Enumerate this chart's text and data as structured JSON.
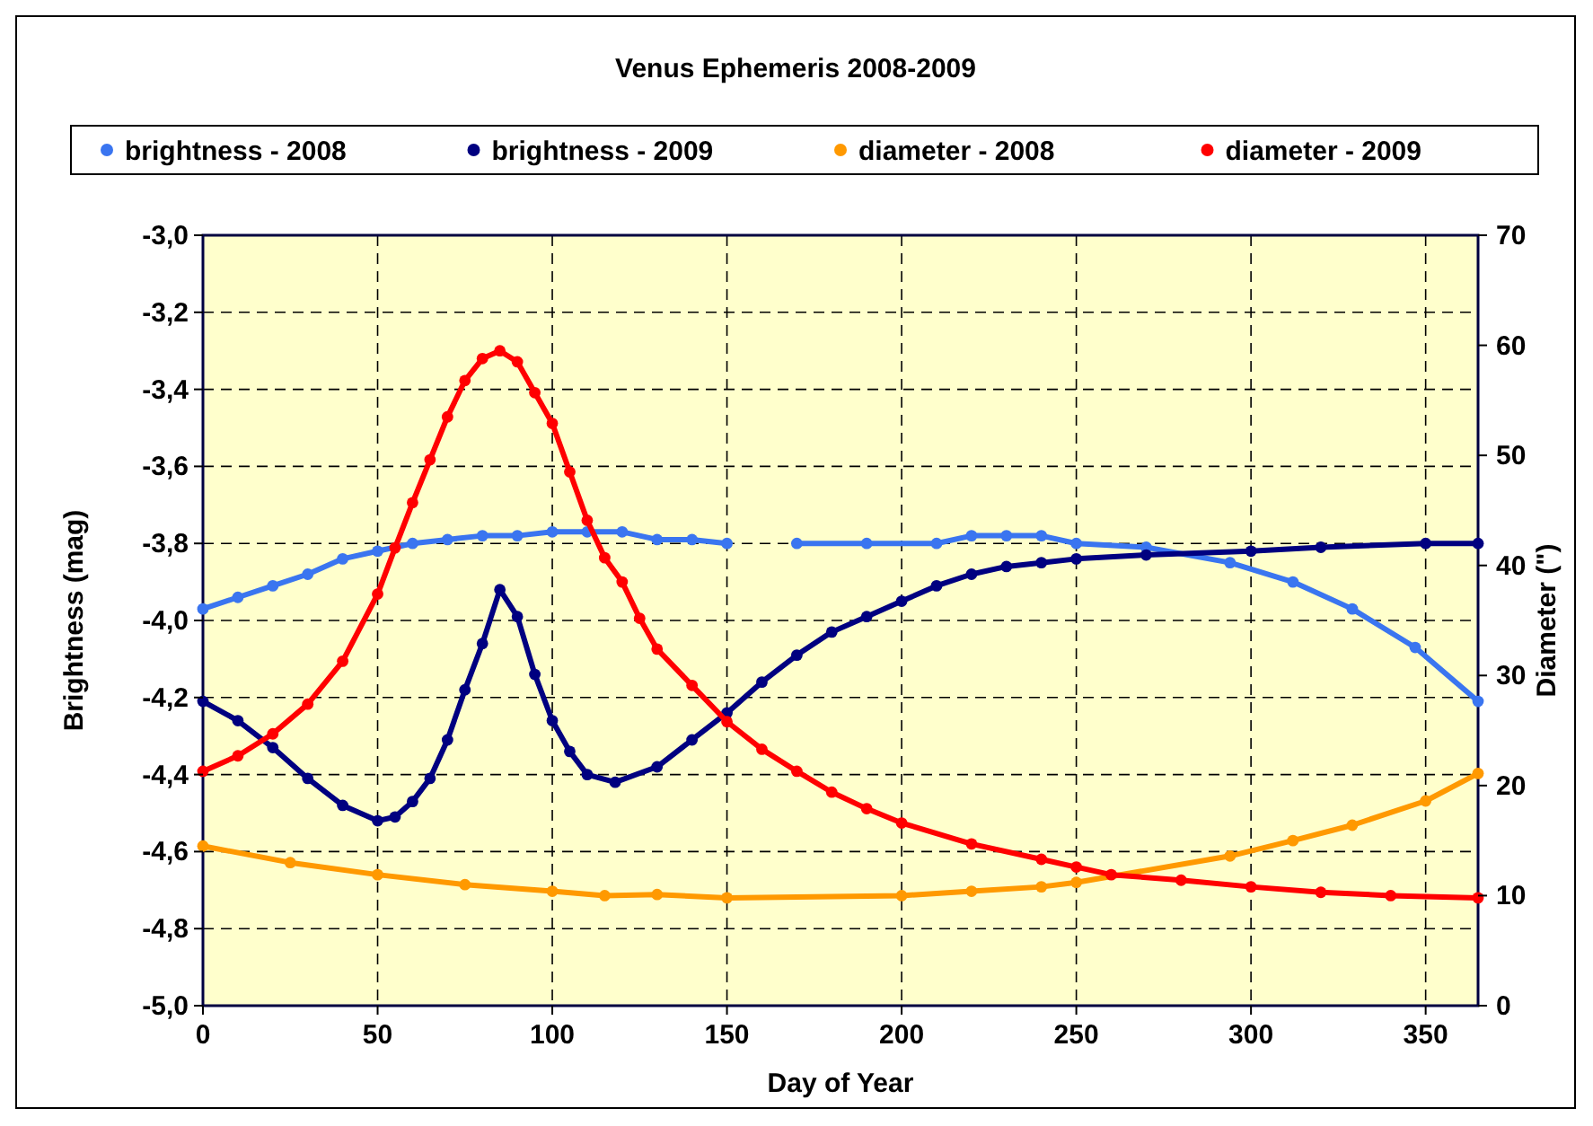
{
  "chart_data": {
    "type": "line",
    "title": "Venus Ephemeris 2008-2009",
    "xlabel": "Day of Year",
    "ylabel": "Brightness (mag)",
    "y2label": "Diameter (\")",
    "xlim": [
      0,
      365
    ],
    "xticks": [
      0,
      50,
      100,
      150,
      200,
      250,
      300,
      350
    ],
    "ylim": [
      -5,
      -3
    ],
    "yticks": [
      {
        "value": -5,
        "label": "-5,0"
      },
      {
        "value": -4.8,
        "label": "-4,8"
      },
      {
        "value": -4.6,
        "label": "-4,6"
      },
      {
        "value": -4.4,
        "label": "-4,4"
      },
      {
        "value": -4.2,
        "label": "-4,2"
      },
      {
        "value": -4,
        "label": "-4,0"
      },
      {
        "value": -3.8,
        "label": "-3,8"
      },
      {
        "value": -3.6,
        "label": "-3,6"
      },
      {
        "value": -3.4,
        "label": "-3,4"
      },
      {
        "value": -3.2,
        "label": "-3,2"
      },
      {
        "value": -3,
        "label": "-3,0"
      }
    ],
    "y2lim": [
      0,
      70
    ],
    "y2ticks": [
      0,
      10,
      20,
      30,
      40,
      50,
      60,
      70
    ],
    "grid": true,
    "legend": "top",
    "marker": "circle",
    "series": [
      {
        "name": "brightness - 2008",
        "color": "#3a75f0",
        "x": [
          0,
          10,
          20,
          30,
          40,
          50,
          60,
          70,
          80,
          90,
          100,
          110,
          120,
          130,
          140,
          150,
          160,
          170,
          190,
          210,
          220,
          230,
          240,
          250,
          270,
          294,
          312,
          329,
          347,
          365
        ],
        "values": [
          -3.97,
          -3.94,
          -3.91,
          -3.88,
          -3.84,
          -3.82,
          -3.8,
          -3.79,
          -3.78,
          -3.78,
          -3.77,
          -3.77,
          -3.77,
          -3.79,
          -3.79,
          -3.8,
          null,
          -3.8,
          -3.8,
          -3.8,
          -3.78,
          -3.78,
          -3.78,
          -3.8,
          -3.81,
          -3.85,
          -3.9,
          -3.97,
          -4.07,
          -4.21
        ]
      },
      {
        "name": "brightness - 2009",
        "color": "#000080",
        "x": [
          0,
          10,
          20,
          30,
          40,
          50,
          55,
          60,
          65,
          70,
          75,
          80,
          85,
          90,
          95,
          100,
          105,
          110,
          118,
          130,
          140,
          150,
          160,
          170,
          180,
          190,
          200,
          210,
          220,
          230,
          240,
          250,
          270,
          300,
          320,
          350,
          365
        ],
        "values": [
          -4.21,
          -4.26,
          -4.33,
          -4.41,
          -4.48,
          -4.52,
          -4.51,
          -4.47,
          -4.41,
          -4.31,
          -4.18,
          -4.06,
          -3.92,
          -3.99,
          -4.14,
          -4.26,
          -4.34,
          -4.4,
          -4.42,
          -4.38,
          -4.31,
          -4.24,
          -4.16,
          -4.09,
          -4.03,
          -3.99,
          -3.95,
          -3.91,
          -3.88,
          -3.86,
          -3.85,
          -3.84,
          -3.83,
          -3.82,
          -3.81,
          -3.8,
          -3.8
        ]
      },
      {
        "name": "diameter - 2008",
        "color": "#ff9900",
        "axis": "y2",
        "x": [
          0,
          25,
          50,
          75,
          100,
          115,
          130,
          150,
          200,
          220,
          240,
          250,
          294,
          312,
          329,
          350,
          365
        ],
        "values": [
          14.5,
          13,
          11.9,
          11,
          10.4,
          10,
          10.1,
          9.8,
          10,
          10.4,
          10.8,
          11.2,
          13.6,
          15,
          16.4,
          18.6,
          21.1
        ]
      },
      {
        "name": "diameter - 2009",
        "color": "#ff0000",
        "axis": "y2",
        "x": [
          0,
          10,
          20,
          30,
          40,
          50,
          55,
          60,
          65,
          70,
          75,
          80,
          85,
          90,
          95,
          100,
          105,
          110,
          115,
          120,
          125,
          130,
          140,
          150,
          160,
          170,
          180,
          190,
          200,
          220,
          240,
          250,
          260,
          280,
          300,
          320,
          340,
          365
        ],
        "values": [
          21.3,
          22.7,
          24.7,
          27.4,
          31.3,
          37.4,
          41.6,
          45.7,
          49.6,
          53.5,
          56.8,
          58.8,
          59.5,
          58.5,
          55.7,
          52.9,
          48.5,
          44.1,
          40.7,
          38.5,
          35.2,
          32.4,
          29.1,
          25.8,
          23.3,
          21.3,
          19.4,
          17.9,
          16.6,
          14.7,
          13.3,
          12.6,
          11.9,
          11.4,
          10.8,
          10.3,
          10,
          9.8
        ]
      }
    ]
  }
}
